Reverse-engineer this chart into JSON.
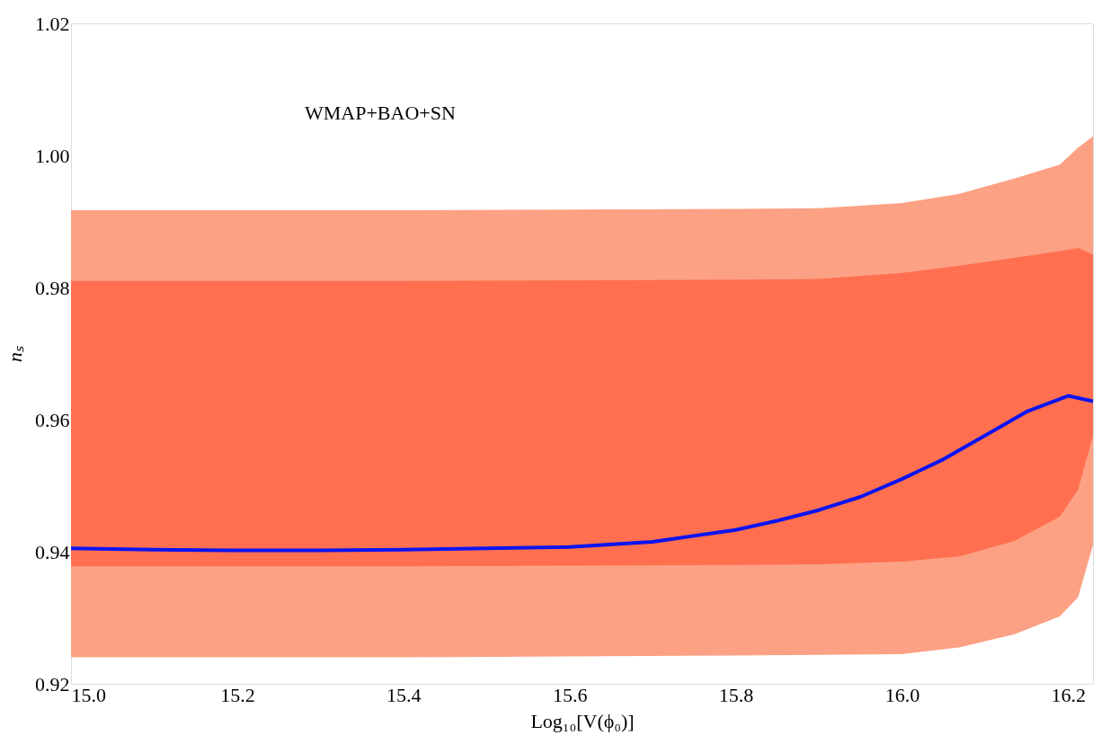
{
  "chart_data": {
    "type": "area",
    "xlabel": "Log₁₀[V(ϕ₀)]",
    "ylabel": "nₛ",
    "annotations": [
      "WMAP+BAO+SN"
    ],
    "xlim": [
      15.0,
      16.23
    ],
    "ylim": [
      0.92,
      1.02
    ],
    "xticks": [
      {
        "value": 15.0,
        "label": "15.0"
      },
      15.2,
      15.4,
      15.6,
      15.8,
      {
        "value": 16.0,
        "label": "16.0"
      },
      16.2
    ],
    "yticks": [
      0.92,
      0.94,
      0.96,
      0.98,
      {
        "value": 1.0,
        "label": "1.00"
      },
      1.02
    ],
    "grid": false,
    "series": [
      {
        "color": "#fca184",
        "x": [
          15.0,
          15.4,
          15.8,
          15.9,
          16.0,
          16.069,
          16.135,
          16.19,
          16.212,
          16.23
        ],
        "lower": [
          0.924,
          0.924,
          0.9243,
          0.9244,
          0.9245,
          0.9255,
          0.9275,
          0.9302,
          0.9331,
          0.941
        ],
        "values": [
          null,
          null,
          null,
          null,
          null,
          null,
          null,
          null,
          null,
          null
        ],
        "upper": [
          0.9917,
          0.9917,
          0.9919,
          0.992,
          0.9928,
          0.9942,
          0.9965,
          0.9986,
          1.0012,
          1.0029
        ]
      },
      {
        "color": "#ff6f50",
        "x": [
          15.0,
          15.4,
          15.8,
          15.9,
          16.0,
          16.069,
          16.135,
          16.19,
          16.212,
          16.23
        ],
        "lower": [
          0.9378,
          0.9378,
          0.938,
          0.9381,
          0.9385,
          0.9393,
          0.9416,
          0.9453,
          0.9494,
          0.9576
        ],
        "values": [
          null,
          null,
          null,
          null,
          null,
          null,
          null,
          null,
          null,
          null
        ],
        "upper": [
          0.981,
          0.981,
          0.9812,
          0.9813,
          0.9822,
          0.9833,
          0.9845,
          0.9855,
          0.986,
          0.985
        ]
      },
      {
        "type": "line",
        "color": "#0a14f0",
        "x": [
          15.0,
          15.1,
          15.2,
          15.3,
          15.4,
          15.5,
          15.6,
          15.7,
          15.8,
          15.85,
          15.9,
          15.95,
          16.0,
          16.05,
          16.1,
          16.15,
          16.2,
          16.23
        ],
        "values": [
          0.9405,
          0.9403,
          0.9402,
          0.9402,
          0.9403,
          0.9405,
          0.9407,
          0.9415,
          0.9433,
          0.9447,
          0.9463,
          0.9483,
          0.951,
          0.954,
          0.9576,
          0.9612,
          0.9636,
          0.9628
        ]
      }
    ]
  }
}
